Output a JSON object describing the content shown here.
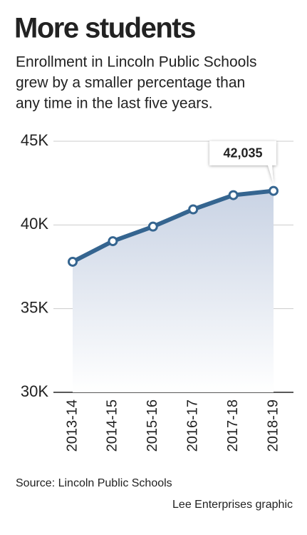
{
  "chart_data": {
    "type": "line",
    "title": "More students",
    "subtitle": [
      "Enrollment in Lincoln Public Schools",
      "grew by a smaller percentage than",
      "any time in the last five years."
    ],
    "categories": [
      "2013-14",
      "2014-15",
      "2015-16",
      "2016-17",
      "2017-18",
      "2018-19"
    ],
    "values": [
      37800,
      39030,
      39900,
      40930,
      41780,
      42035
    ],
    "value_labels": [
      null,
      null,
      null,
      null,
      null,
      "42,035"
    ],
    "color": "#356590",
    "ylim": [
      30000,
      45000
    ],
    "yticks": [
      {
        "value": 30000,
        "label": "30K"
      },
      {
        "value": 35000,
        "label": "35K"
      },
      {
        "value": 40000,
        "label": "40K"
      },
      {
        "value": 45000,
        "label": "45K"
      }
    ],
    "grid": true,
    "source": "Source: Lincoln Public Schools",
    "credit": "Lee Enterprises graphic"
  }
}
